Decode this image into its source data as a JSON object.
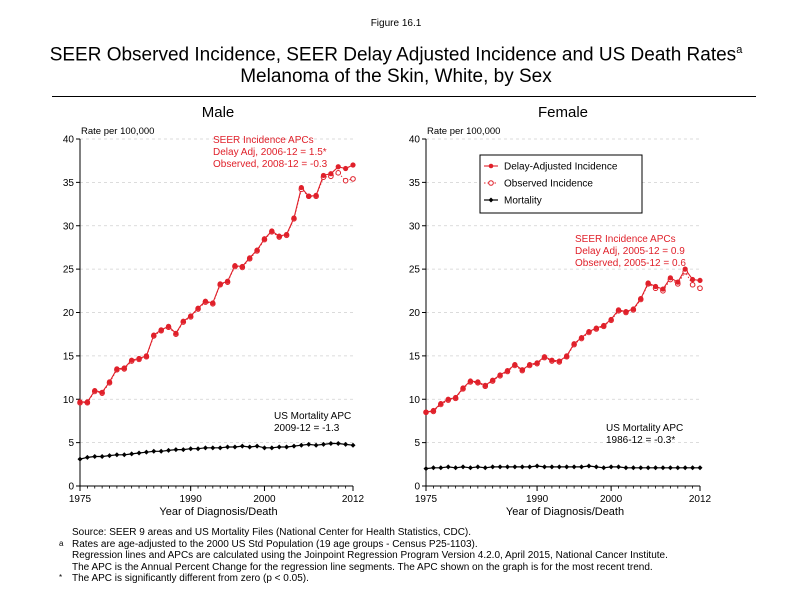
{
  "figure_label": "Figure 16.1",
  "title_line1": "SEER Observed Incidence, SEER Delay Adjusted Incidence and US Death Rates",
  "title_superscript": "a",
  "title_line2": "Melanoma of the Skin, White, by Sex",
  "colors": {
    "incidence": "#e0202a",
    "mortality": "#000000",
    "grid": "#d0d0d0"
  },
  "chart_data": [
    {
      "type": "line",
      "panel_title": "Male",
      "ylabel": "Rate per 100,000",
      "xlabel": "Year of Diagnosis/Death",
      "xlim": [
        1975,
        2012
      ],
      "ylim": [
        0,
        40
      ],
      "xticks": [
        1975,
        1990,
        2000,
        2012
      ],
      "yticks": [
        0,
        5,
        10,
        15,
        20,
        25,
        30,
        35,
        40
      ],
      "grid": "dashed horizontal",
      "x": [
        1975,
        1976,
        1977,
        1978,
        1979,
        1980,
        1981,
        1982,
        1983,
        1984,
        1985,
        1986,
        1987,
        1988,
        1989,
        1990,
        1991,
        1992,
        1993,
        1994,
        1995,
        1996,
        1997,
        1998,
        1999,
        2000,
        2001,
        2002,
        2003,
        2004,
        2005,
        2006,
        2007,
        2008,
        2009,
        2010,
        2011,
        2012
      ],
      "series": [
        {
          "name": "Delay-Adjusted Incidence",
          "values": [
            9.7,
            9.7,
            11.0,
            10.8,
            12.0,
            13.5,
            13.6,
            14.5,
            14.7,
            15.0,
            17.4,
            18.0,
            18.4,
            17.6,
            19.0,
            19.6,
            20.5,
            21.3,
            21.1,
            23.3,
            23.6,
            25.4,
            25.3,
            26.3,
            27.2,
            28.5,
            29.4,
            28.8,
            29.0,
            30.9,
            34.4,
            33.4,
            33.5,
            35.8,
            36.0,
            36.8,
            36.6,
            37.0
          ]
        },
        {
          "name": "Observed Incidence",
          "values": [
            9.6,
            9.6,
            10.9,
            10.7,
            11.9,
            13.4,
            13.5,
            14.4,
            14.6,
            14.9,
            17.3,
            17.9,
            18.3,
            17.5,
            18.9,
            19.5,
            20.4,
            21.2,
            21.0,
            23.2,
            23.5,
            25.3,
            25.2,
            26.2,
            27.1,
            28.4,
            29.3,
            28.7,
            28.9,
            30.8,
            34.2,
            33.4,
            33.4,
            35.6,
            35.7,
            36.1,
            35.2,
            35.4
          ]
        },
        {
          "name": "Mortality",
          "values": [
            3.1,
            3.3,
            3.4,
            3.4,
            3.5,
            3.6,
            3.6,
            3.7,
            3.8,
            3.9,
            4.0,
            4.0,
            4.1,
            4.2,
            4.2,
            4.3,
            4.3,
            4.4,
            4.4,
            4.4,
            4.5,
            4.5,
            4.6,
            4.5,
            4.6,
            4.4,
            4.4,
            4.5,
            4.5,
            4.6,
            4.7,
            4.8,
            4.7,
            4.8,
            4.9,
            4.9,
            4.8,
            4.7
          ]
        }
      ],
      "annotations": [
        {
          "lines": [
            "SEER Incidence APCs",
            "Delay Adj, 2006-12 = 1.5*",
            "Observed, 2008-12 = -0.3"
          ],
          "color": "#e0202a"
        },
        {
          "lines": [
            "US Mortality APC",
            "2009-12 = -1.3"
          ],
          "color": "#000000"
        }
      ]
    },
    {
      "type": "line",
      "panel_title": "Female",
      "ylabel": "Rate per 100,000",
      "xlabel": "Year of Diagnosis/Death",
      "xlim": [
        1975,
        2012
      ],
      "ylim": [
        0,
        40
      ],
      "xticks": [
        1975,
        1990,
        2000,
        2012
      ],
      "yticks": [
        0,
        5,
        10,
        15,
        20,
        25,
        30,
        35,
        40
      ],
      "grid": "dashed horizontal",
      "legend_position": "top-right",
      "x": [
        1975,
        1976,
        1977,
        1978,
        1979,
        1980,
        1981,
        1982,
        1983,
        1984,
        1985,
        1986,
        1987,
        1988,
        1989,
        1990,
        1991,
        1992,
        1993,
        1994,
        1995,
        1996,
        1997,
        1998,
        1999,
        2000,
        2001,
        2002,
        2003,
        2004,
        2005,
        2006,
        2007,
        2008,
        2009,
        2010,
        2011,
        2012
      ],
      "series": [
        {
          "name": "Delay-Adjusted Incidence",
          "values": [
            8.5,
            8.7,
            9.5,
            10.0,
            10.2,
            11.3,
            12.1,
            12.0,
            11.6,
            12.2,
            12.8,
            13.3,
            14.0,
            13.4,
            14.0,
            14.2,
            14.9,
            14.5,
            14.4,
            15.0,
            16.4,
            17.1,
            17.8,
            18.2,
            18.5,
            19.2,
            20.3,
            20.1,
            20.4,
            21.6,
            23.4,
            23.0,
            22.7,
            24.0,
            23.5,
            25.0,
            23.8,
            23.7
          ]
        },
        {
          "name": "Observed Incidence",
          "values": [
            8.5,
            8.6,
            9.4,
            9.9,
            10.1,
            11.2,
            12.0,
            11.9,
            11.5,
            12.1,
            12.7,
            13.2,
            13.9,
            13.3,
            13.9,
            14.1,
            14.8,
            14.4,
            14.3,
            14.9,
            16.3,
            17.0,
            17.7,
            18.1,
            18.4,
            19.1,
            20.2,
            20.0,
            20.3,
            21.5,
            23.3,
            22.8,
            22.5,
            23.8,
            23.3,
            24.7,
            23.2,
            22.8
          ]
        },
        {
          "name": "Mortality",
          "values": [
            2.0,
            2.1,
            2.1,
            2.2,
            2.1,
            2.2,
            2.1,
            2.2,
            2.1,
            2.2,
            2.2,
            2.2,
            2.2,
            2.2,
            2.2,
            2.3,
            2.2,
            2.2,
            2.2,
            2.2,
            2.2,
            2.2,
            2.3,
            2.2,
            2.1,
            2.2,
            2.2,
            2.1,
            2.1,
            2.1,
            2.1,
            2.1,
            2.1,
            2.1,
            2.1,
            2.1,
            2.1,
            2.1
          ]
        }
      ],
      "annotations": [
        {
          "lines": [
            "SEER Incidence APCs",
            "Delay Adj, 2005-12 = 0.9",
            "Observed, 2005-12 = 0.6"
          ],
          "color": "#e0202a"
        },
        {
          "lines": [
            "US Mortality APC",
            "1986-12 = -0.3*"
          ],
          "color": "#000000"
        }
      ]
    }
  ],
  "footnotes": [
    {
      "mark": "",
      "text": "Source: SEER 9 areas and US Mortality Files (National Center for Health Statistics, CDC)."
    },
    {
      "mark": "a",
      "text": "Rates are age-adjusted to the 2000 US Std Population (19 age groups - Census P25-1103)."
    },
    {
      "mark": "",
      "text": "Regression lines and APCs are calculated using the Joinpoint Regression Program Version 4.2.0, April 2015, National Cancer Institute."
    },
    {
      "mark": "",
      "text": "The APC is the Annual Percent Change for the regression line segments. The APC shown on the graph is for the most recent trend."
    },
    {
      "mark": "*",
      "text": "The APC is significantly different from zero (p < 0.05)."
    }
  ]
}
